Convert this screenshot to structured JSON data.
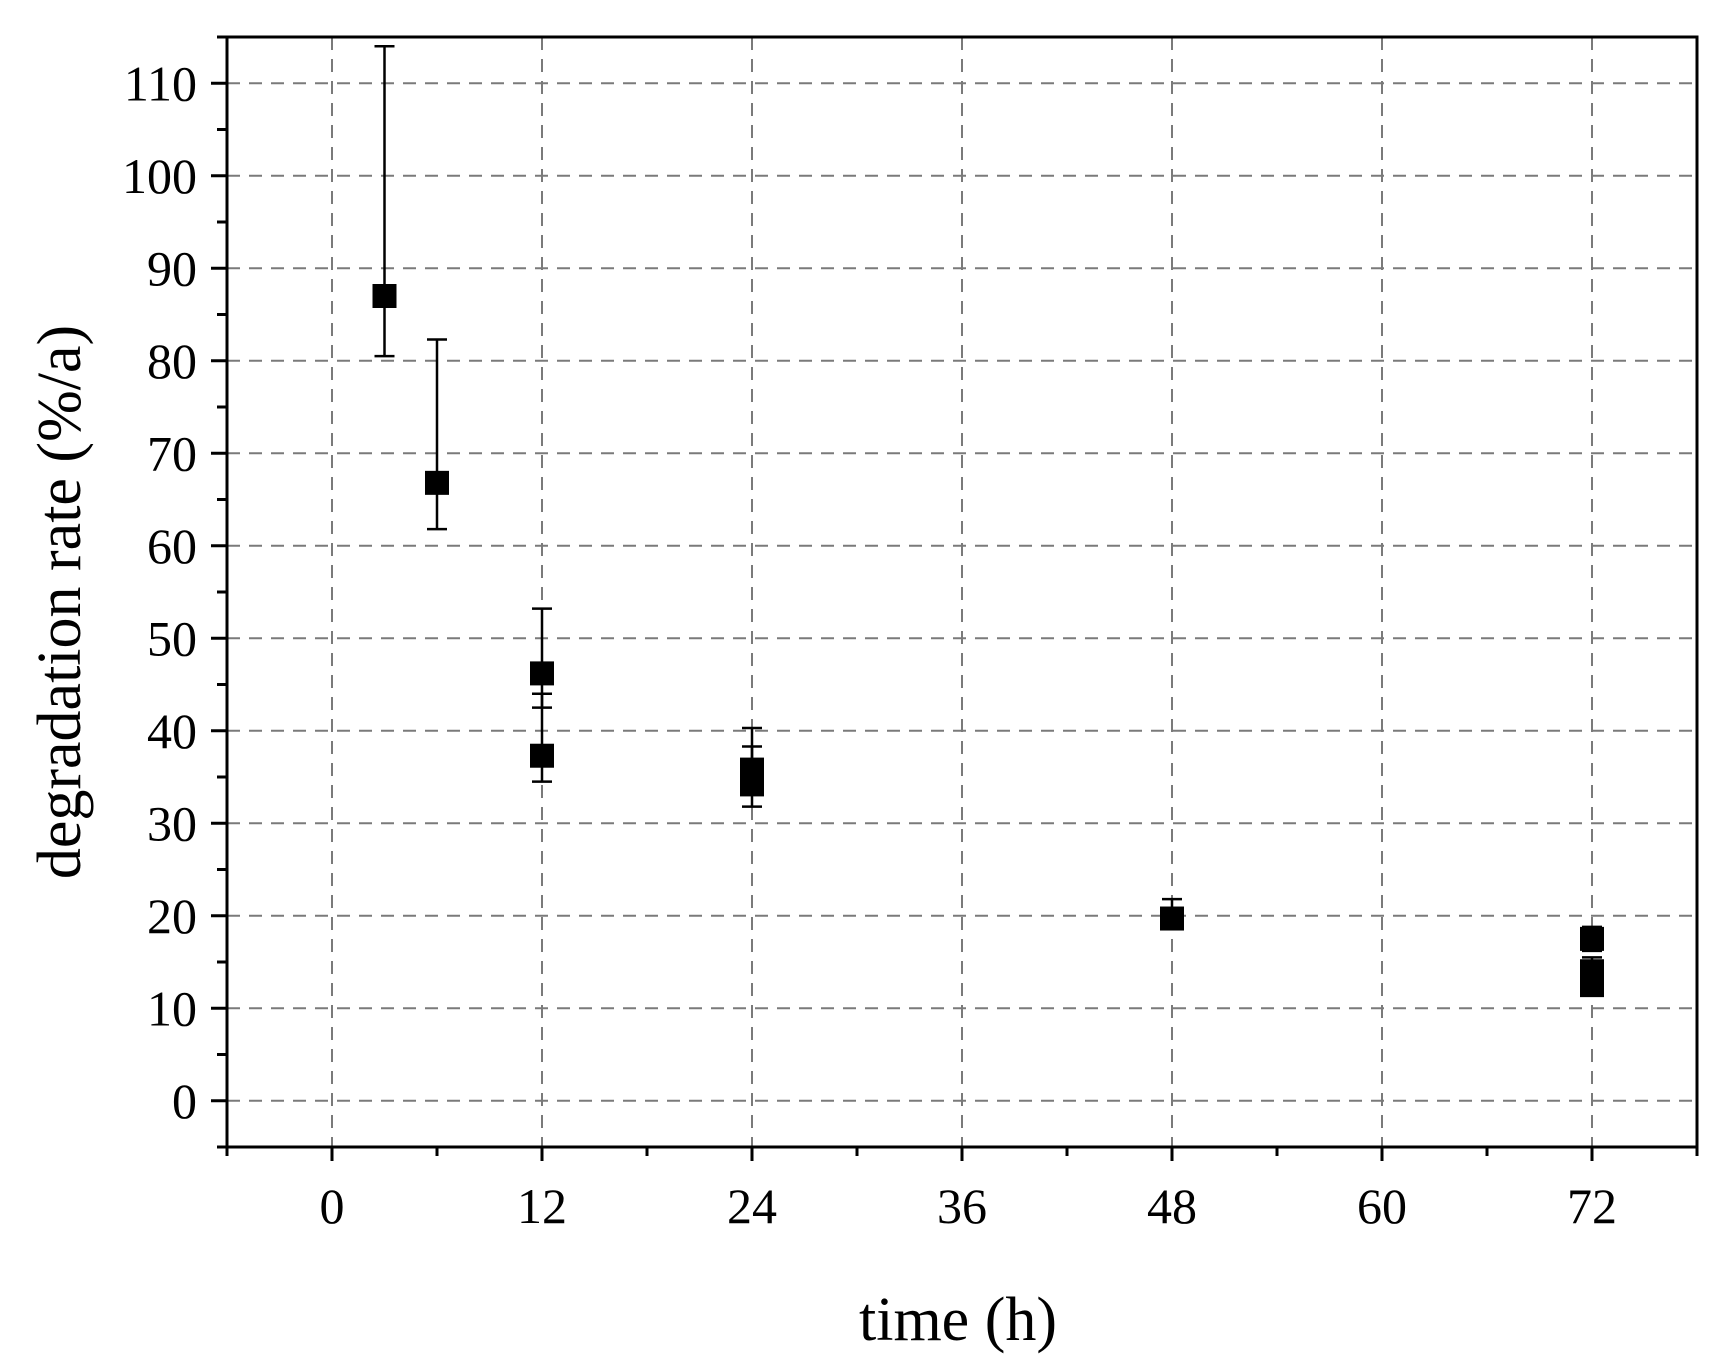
{
  "chart_data": {
    "type": "scatter",
    "xlabel": "time (h)",
    "ylabel": "degradation rate (%/a)",
    "xlim": [
      -6,
      78
    ],
    "ylim": [
      -5,
      115
    ],
    "xticks": [
      0,
      12,
      24,
      36,
      48,
      60,
      72
    ],
    "yticks": [
      0,
      10,
      20,
      30,
      40,
      50,
      60,
      70,
      80,
      90,
      100,
      110
    ],
    "grid": true,
    "grid_style": "dashed",
    "marker": "square",
    "marker_color": "#000000",
    "series": [
      {
        "points": [
          {
            "x": 3,
            "y": 87.0,
            "err_low": 80.5,
            "err_high": 114.0
          },
          {
            "x": 6,
            "y": 66.8,
            "err_low": 61.8,
            "err_high": 82.3
          },
          {
            "x": 12,
            "y": 46.2,
            "err_low": 42.5,
            "err_high": 53.2
          },
          {
            "x": 12,
            "y": 37.3,
            "err_low": 34.5,
            "err_high": 44.0
          },
          {
            "x": 24,
            "y": 35.8,
            "err_low": 33.5,
            "err_high": 40.3
          },
          {
            "x": 24,
            "y": 34.2,
            "err_low": 31.8,
            "err_high": 38.3
          },
          {
            "x": 48,
            "y": 19.7,
            "err_low": 18.8,
            "err_high": 21.8
          },
          {
            "x": 72,
            "y": 17.5,
            "err_low": 16.2,
            "err_high": 18.8
          },
          {
            "x": 72,
            "y": 14.0,
            "err_low": 12.5,
            "err_high": 15.5
          },
          {
            "x": 72,
            "y": 12.5,
            "err_low": 11.6,
            "err_high": 13.6
          }
        ]
      }
    ]
  }
}
